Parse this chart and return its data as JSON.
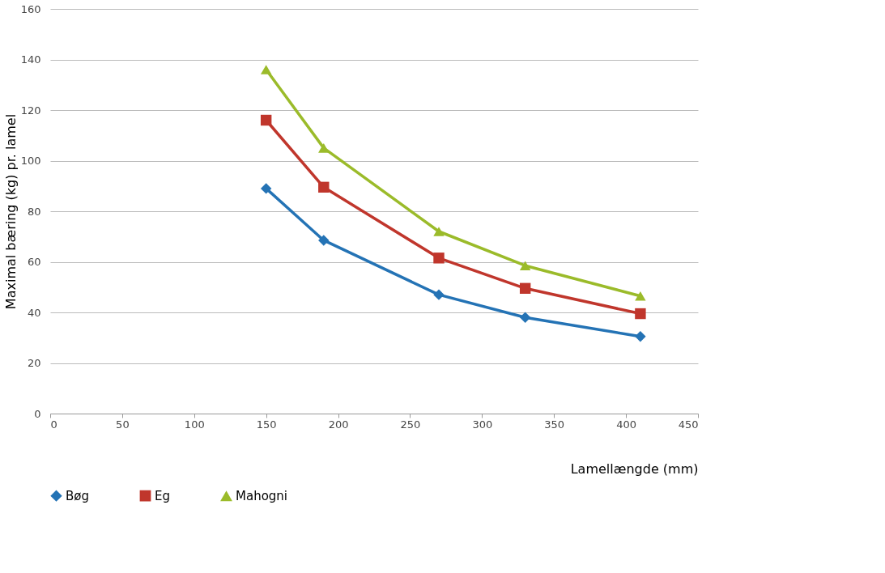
{
  "chart_data": {
    "type": "line",
    "xlabel": "Lamellængde (mm)",
    "ylabel": "Maximal bæring (kg) pr. lamel",
    "x": [
      150,
      190,
      270,
      330,
      410
    ],
    "series": [
      {
        "name": "Bøg",
        "color": "#2473b5",
        "marker": "diamond",
        "values": [
          89,
          68.5,
          47,
          38,
          30.5
        ]
      },
      {
        "name": "Eg",
        "color": "#c0362c",
        "marker": "square",
        "values": [
          116,
          89.5,
          61.5,
          49.5,
          39.5
        ]
      },
      {
        "name": "Mahogni",
        "color": "#9bbb2a",
        "marker": "triangle",
        "values": [
          136,
          105,
          72,
          58.5,
          46.5
        ]
      }
    ],
    "xlim": [
      0,
      450
    ],
    "xticks": [
      0,
      50,
      100,
      150,
      200,
      250,
      300,
      350,
      400,
      450
    ],
    "ylim": [
      0,
      160
    ],
    "yticks": [
      0,
      20,
      40,
      60,
      80,
      100,
      120,
      140,
      160
    ],
    "grid": "y",
    "legend": "bottom",
    "line_style": "solid"
  }
}
